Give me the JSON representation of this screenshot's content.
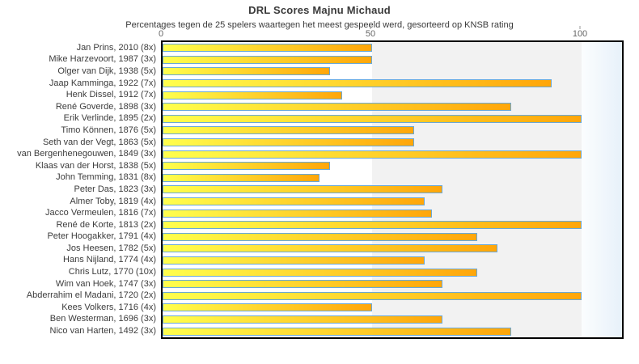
{
  "title": "DRL Scores Majnu Michaud",
  "subtitle": "Percentages tegen de 25 spelers waartegen het meest gespeeld werd, gesorteerd op KNSB rating",
  "chart_data": {
    "type": "bar",
    "orientation": "horizontal",
    "title": "DRL Scores Majnu Michaud",
    "subtitle": "Percentages tegen de 25 spelers waartegen het meest gespeeld werd, gesorteerd op KNSB rating",
    "xlabel": "",
    "ylabel": "",
    "xlim": [
      0,
      109.7
    ],
    "x_ticks": [
      "0",
      "50",
      "100"
    ],
    "x_tick_values": [
      0,
      50,
      100
    ],
    "grid": false,
    "legend": "none",
    "categories": [
      "Jan Prins, 2010 (8x)",
      "Mike Harzevoort, 1987 (3x)",
      "Olger van Dijk, 1938 (5x)",
      "Jaap Kamminga, 1922 (7x)",
      "Henk Dissel, 1912 (7x)",
      "René Goverde, 1898 (3x)",
      "Erik Verlinde, 1895 (2x)",
      "Timo Können, 1876 (5x)",
      "Seth van der Vegt, 1863 (5x)",
      "van Bergenhenegouwen, 1849 (3x)",
      "Klaas van der Horst, 1838 (5x)",
      "John Temming, 1831 (8x)",
      "Peter Das, 1823 (3x)",
      "Almer Toby, 1819 (4x)",
      "Jacco Vermeulen, 1816 (7x)",
      "René de Korte, 1813 (2x)",
      "Peter Hoogakker, 1791 (4x)",
      "Jos Heesen, 1782 (5x)",
      "Hans Nijland, 1774 (4x)",
      "Chris Lutz, 1770 (10x)",
      "Wim van Hoek, 1747 (3x)",
      "Abderrahim el Madani, 1720 (2x)",
      "Kees Volkers, 1716 (4x)",
      "Ben Westerman, 1696 (3x)",
      "Nico van Harten, 1492 (3x)"
    ],
    "values": [
      50,
      50,
      40,
      92.9,
      42.9,
      83.3,
      100,
      60,
      60,
      100,
      40,
      37.5,
      66.7,
      62.5,
      64.3,
      100,
      75,
      80,
      62.5,
      75,
      66.7,
      100,
      50,
      66.7,
      83.3
    ],
    "colors": {
      "bar_gradient_start": "#ffff4d",
      "bar_gradient_end": "#ffa60a",
      "bar_border": "#69a8d8",
      "band_0_50": "#ffffff",
      "band_50_100": "#f2f2f2",
      "band_over_100_start": "#fbfdfe",
      "band_over_100_end": "#e7f1fa",
      "plot_border": "#000000",
      "tick_text": "#666666",
      "label_text": "#3c3c3c",
      "title_text": "#3a3a3a"
    }
  }
}
